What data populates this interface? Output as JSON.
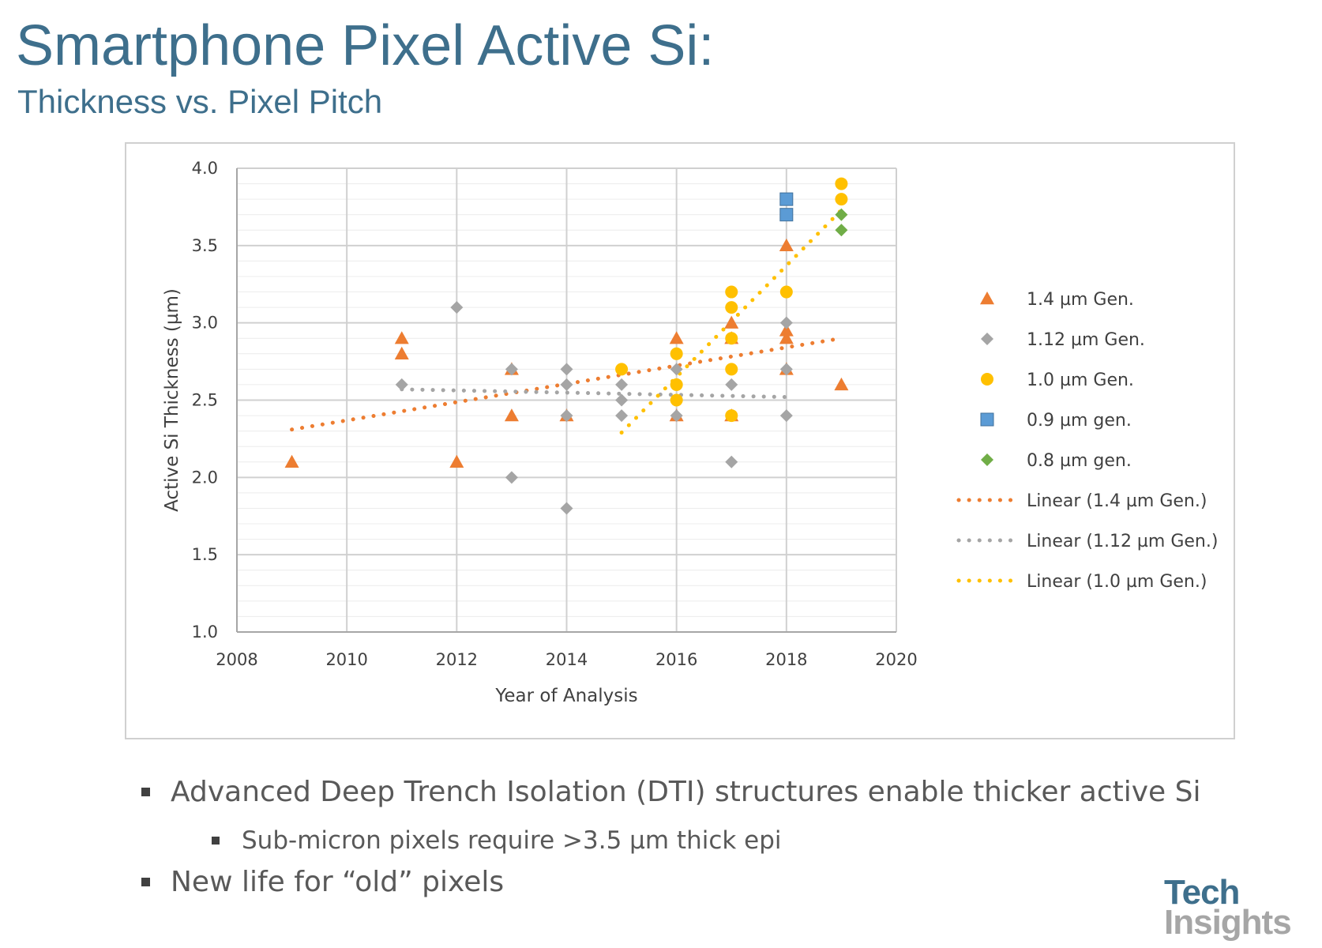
{
  "header": {
    "title": "Smartphone Pixel Active Si:",
    "subtitle": "Thickness vs. Pixel Pitch"
  },
  "bullets": {
    "b1": "Advanced Deep Trench Isolation (DTI) structures enable thicker active Si",
    "b2": "Sub-micron pixels require >3.5 µm thick epi",
    "b3": "New life for “old” pixels"
  },
  "logo": {
    "line1": "Tech",
    "line2": "Insights"
  },
  "chart_data": {
    "type": "scatter",
    "xlabel": "Year of Analysis",
    "ylabel": "Active Si Thickness (µm)",
    "xlim": [
      2008,
      2020
    ],
    "ylim": [
      1.0,
      4.0
    ],
    "xticks": [
      "2008",
      "2010",
      "2012",
      "2014",
      "2016",
      "2018",
      "2020"
    ],
    "yticks": [
      "1.0",
      "1.5",
      "2.0",
      "2.5",
      "3.0",
      "3.5",
      "4.0"
    ],
    "grid": true,
    "legend_position": "right",
    "series": [
      {
        "name": "1.4 µm Gen.",
        "marker": "triangle",
        "color": "#ed7d31",
        "points": [
          [
            2009,
            2.1
          ],
          [
            2011,
            2.9
          ],
          [
            2011,
            2.8
          ],
          [
            2012,
            2.1
          ],
          [
            2013,
            2.7
          ],
          [
            2013,
            2.4
          ],
          [
            2014,
            2.4
          ],
          [
            2016,
            2.9
          ],
          [
            2016,
            2.4
          ],
          [
            2017,
            3.0
          ],
          [
            2017,
            2.9
          ],
          [
            2017,
            2.4
          ],
          [
            2018,
            3.5
          ],
          [
            2018,
            2.95
          ],
          [
            2018,
            2.9
          ],
          [
            2018,
            2.7
          ],
          [
            2019,
            2.6
          ]
        ]
      },
      {
        "name": "1.12 µm Gen.",
        "marker": "diamond",
        "color": "#a5a5a5",
        "points": [
          [
            2011,
            2.6
          ],
          [
            2012,
            3.1
          ],
          [
            2013,
            2.7
          ],
          [
            2013,
            2.0
          ],
          [
            2014,
            2.7
          ],
          [
            2014,
            2.6
          ],
          [
            2014,
            2.4
          ],
          [
            2014,
            1.8
          ],
          [
            2015,
            2.6
          ],
          [
            2015,
            2.5
          ],
          [
            2015,
            2.4
          ],
          [
            2016,
            2.7
          ],
          [
            2016,
            2.4
          ],
          [
            2017,
            2.6
          ],
          [
            2017,
            2.1
          ],
          [
            2018,
            3.0
          ],
          [
            2018,
            2.7
          ],
          [
            2018,
            2.4
          ]
        ]
      },
      {
        "name": "1.0 µm Gen.",
        "marker": "circle",
        "color": "#ffc000",
        "points": [
          [
            2015,
            2.7
          ],
          [
            2016,
            2.8
          ],
          [
            2016,
            2.6
          ],
          [
            2016,
            2.5
          ],
          [
            2017,
            3.2
          ],
          [
            2017,
            3.1
          ],
          [
            2017,
            2.9
          ],
          [
            2017,
            2.7
          ],
          [
            2017,
            2.4
          ],
          [
            2018,
            3.2
          ],
          [
            2019,
            3.9
          ],
          [
            2019,
            3.8
          ]
        ]
      },
      {
        "name": "0.9 µm gen.",
        "marker": "square",
        "color": "#5b9bd5",
        "points": [
          [
            2018,
            3.8
          ],
          [
            2018,
            3.7
          ]
        ]
      },
      {
        "name": "0.8 µm gen.",
        "marker": "diamond",
        "color": "#70ad47",
        "points": [
          [
            2019,
            3.7
          ],
          [
            2019,
            3.6
          ]
        ]
      }
    ],
    "trendlines": [
      {
        "name": "Linear (1.4 µm Gen.)",
        "color": "#ed7d31",
        "x": [
          2009,
          2019
        ],
        "y": [
          2.31,
          2.9
        ]
      },
      {
        "name": "Linear (1.12 µm Gen.)",
        "color": "#a5a5a5",
        "x": [
          2011,
          2018
        ],
        "y": [
          2.57,
          2.52
        ]
      },
      {
        "name": "Linear (1.0 µm Gen.)",
        "color": "#ffc000",
        "x": [
          2015,
          2019
        ],
        "y": [
          2.29,
          3.73
        ]
      }
    ]
  }
}
